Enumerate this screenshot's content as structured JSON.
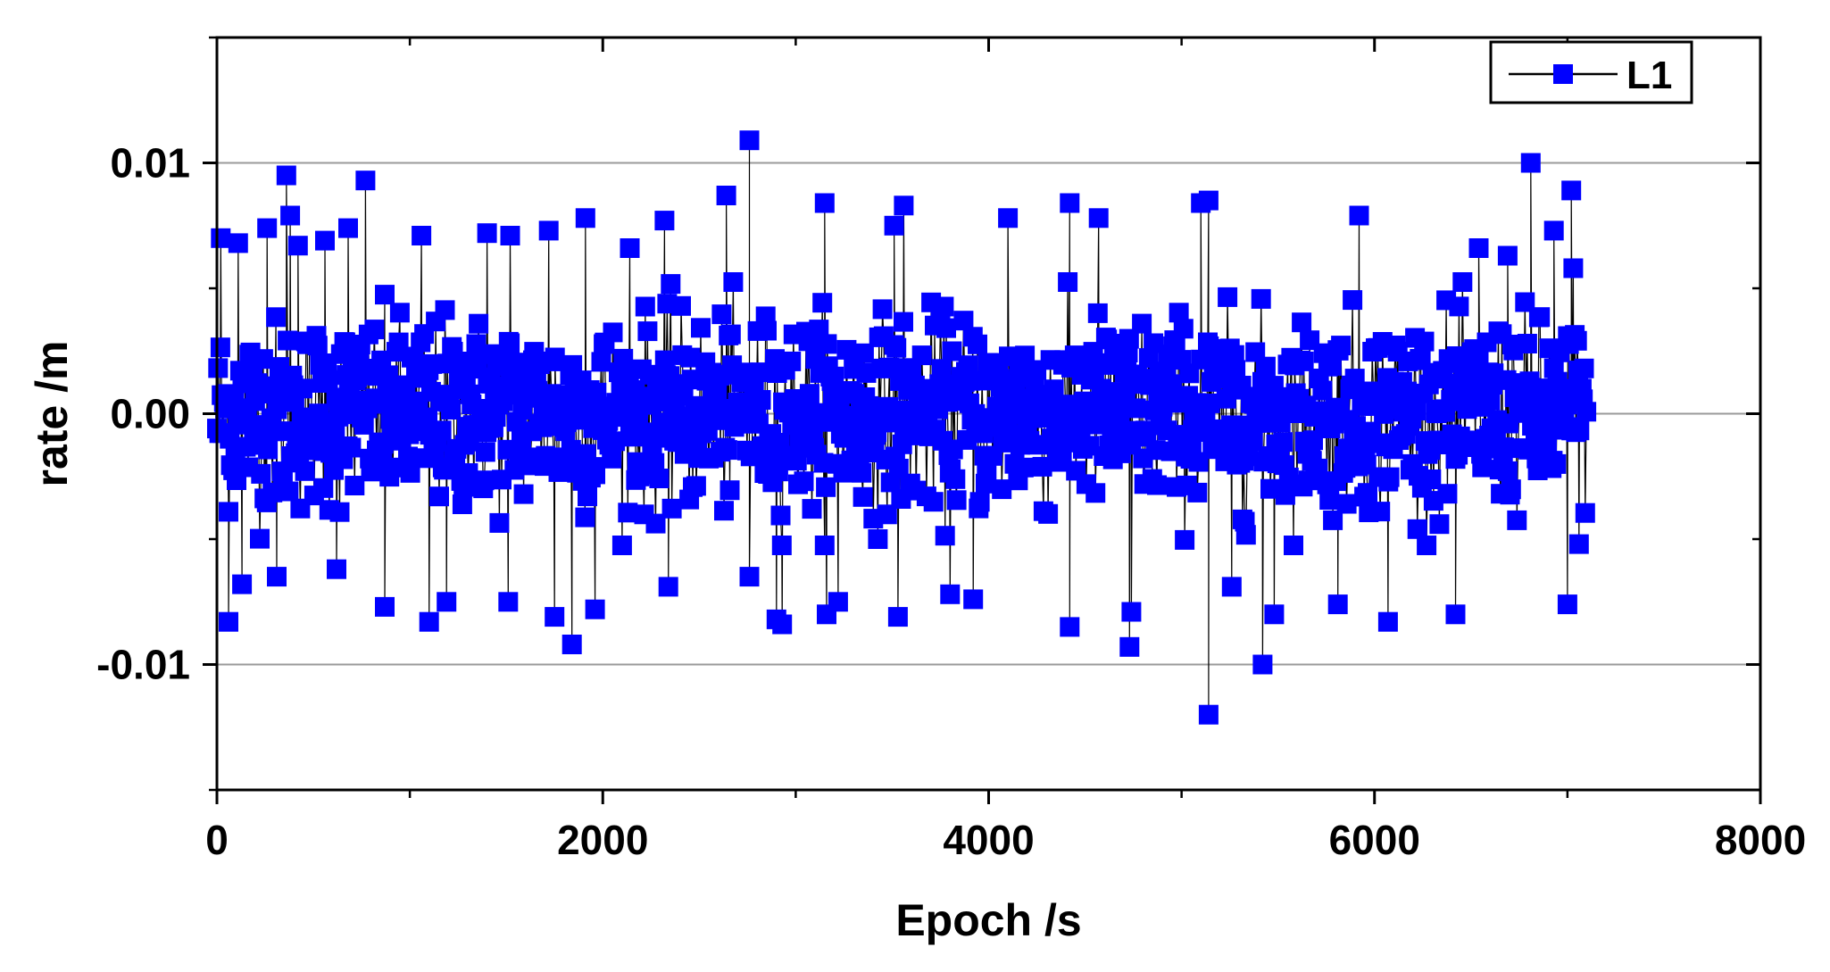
{
  "chart_data": {
    "type": "line",
    "xlabel": "Epoch /s",
    "ylabel": "rate /m",
    "xlim": [
      0,
      8000
    ],
    "ylim": [
      -0.015,
      0.015
    ],
    "x_ticks": [
      {
        "value": 0,
        "label": "0"
      },
      {
        "value": 2000,
        "label": "2000"
      },
      {
        "value": 4000,
        "label": "4000"
      },
      {
        "value": 6000,
        "label": "6000"
      },
      {
        "value": 8000,
        "label": "8000"
      }
    ],
    "y_ticks": [
      {
        "value": 0.01,
        "label": "0.01"
      },
      {
        "value": 0.0,
        "label": "0.00"
      },
      {
        "value": -0.01,
        "label": "-0.01"
      }
    ],
    "grid": "horizontal",
    "legend_position": "top-right",
    "series": [
      {
        "name": "L1",
        "color": "#0000ff",
        "line_color": "#000000",
        "marker": "square",
        "x_range": [
          0,
          7100
        ],
        "epoch_step": 1,
        "core_band": [
          -0.005,
          0.005
        ],
        "outliers": [
          {
            "x": 20,
            "y": 0.007
          },
          {
            "x": 60,
            "y": -0.0083
          },
          {
            "x": 110,
            "y": 0.0068
          },
          {
            "x": 130,
            "y": -0.0068
          },
          {
            "x": 260,
            "y": 0.0074
          },
          {
            "x": 310,
            "y": -0.0065
          },
          {
            "x": 360,
            "y": 0.0095
          },
          {
            "x": 380,
            "y": 0.0079
          },
          {
            "x": 420,
            "y": 0.0067
          },
          {
            "x": 560,
            "y": 0.0069
          },
          {
            "x": 620,
            "y": -0.0062
          },
          {
            "x": 680,
            "y": 0.0074
          },
          {
            "x": 770,
            "y": 0.0093
          },
          {
            "x": 870,
            "y": -0.0077
          },
          {
            "x": 1060,
            "y": 0.0071
          },
          {
            "x": 1100,
            "y": -0.0083
          },
          {
            "x": 1190,
            "y": -0.0075
          },
          {
            "x": 1400,
            "y": 0.0072
          },
          {
            "x": 1510,
            "y": -0.0075
          },
          {
            "x": 1520,
            "y": 0.0071
          },
          {
            "x": 1720,
            "y": 0.0073
          },
          {
            "x": 1750,
            "y": -0.0081
          },
          {
            "x": 1840,
            "y": -0.0092
          },
          {
            "x": 1910,
            "y": 0.0078
          },
          {
            "x": 1960,
            "y": -0.0078
          },
          {
            "x": 2140,
            "y": 0.0066
          },
          {
            "x": 2320,
            "y": 0.0077
          },
          {
            "x": 2340,
            "y": -0.0069
          },
          {
            "x": 2640,
            "y": 0.0087
          },
          {
            "x": 2760,
            "y": 0.0109
          },
          {
            "x": 2760,
            "y": -0.0065
          },
          {
            "x": 2900,
            "y": -0.0082
          },
          {
            "x": 2930,
            "y": -0.0084
          },
          {
            "x": 3150,
            "y": 0.0084
          },
          {
            "x": 3160,
            "y": -0.008
          },
          {
            "x": 3220,
            "y": -0.0075
          },
          {
            "x": 3510,
            "y": 0.0075
          },
          {
            "x": 3530,
            "y": -0.0081
          },
          {
            "x": 3560,
            "y": 0.0083
          },
          {
            "x": 3800,
            "y": -0.0072
          },
          {
            "x": 3920,
            "y": -0.0074
          },
          {
            "x": 4100,
            "y": 0.0078
          },
          {
            "x": 4420,
            "y": 0.0084
          },
          {
            "x": 4420,
            "y": -0.0085
          },
          {
            "x": 4570,
            "y": 0.0078
          },
          {
            "x": 4730,
            "y": -0.0093
          },
          {
            "x": 4740,
            "y": -0.0079
          },
          {
            "x": 5100,
            "y": 0.0084
          },
          {
            "x": 5140,
            "y": 0.0085
          },
          {
            "x": 5140,
            "y": -0.012
          },
          {
            "x": 5260,
            "y": -0.0069
          },
          {
            "x": 5420,
            "y": -0.01
          },
          {
            "x": 5480,
            "y": -0.008
          },
          {
            "x": 5810,
            "y": -0.0076
          },
          {
            "x": 5920,
            "y": 0.0079
          },
          {
            "x": 6070,
            "y": -0.0083
          },
          {
            "x": 6420,
            "y": -0.008
          },
          {
            "x": 6540,
            "y": 0.0066
          },
          {
            "x": 6690,
            "y": 0.0063
          },
          {
            "x": 6810,
            "y": 0.01
          },
          {
            "x": 6930,
            "y": 0.0073
          },
          {
            "x": 7000,
            "y": -0.0076
          },
          {
            "x": 7020,
            "y": 0.0089
          },
          {
            "x": 7030,
            "y": 0.0058
          },
          {
            "x": 7060,
            "y": -0.0052
          }
        ]
      }
    ]
  }
}
